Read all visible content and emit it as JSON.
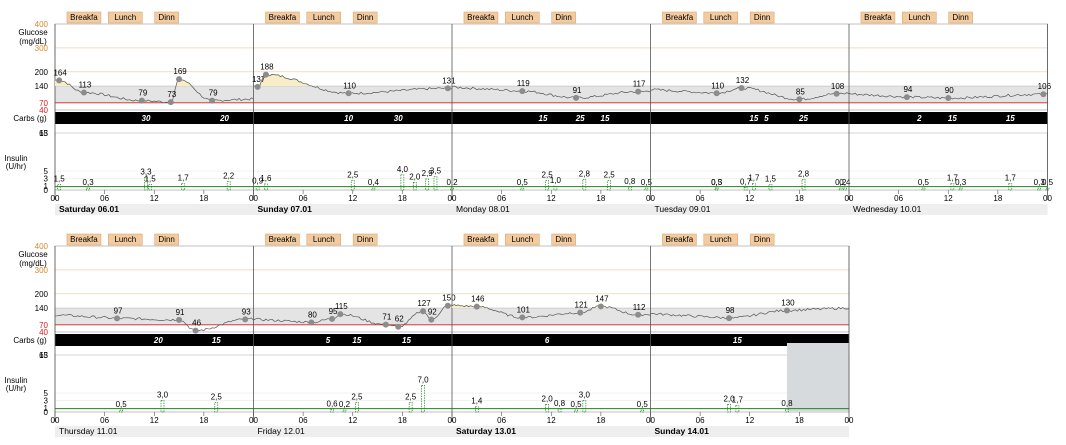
{
  "chart_data": {
    "type": "line",
    "axis_labels": {
      "glucose": "Glucose (mg/dL)",
      "carbs": "Carbs (g)",
      "insulin": "Insulin (U/hr)"
    },
    "glucose_ticks": [
      400,
      300,
      200,
      140,
      70,
      40
    ],
    "glucose_ticks_colored": [
      400,
      300
    ],
    "glucose_target_range": [
      70,
      140
    ],
    "carbs_max": 63,
    "insulin_ticks": [
      15,
      5,
      3,
      1,
      0
    ],
    "meal_labels": [
      "Breakfa",
      "Lunch",
      "Dinn"
    ],
    "x_hours": [
      "00",
      "06",
      "12",
      "18"
    ],
    "colors": {
      "glucose_line": "#555555",
      "target_band": "#e4e4e4",
      "high_fill": "#f7edc8",
      "low_line": "#d81e1e",
      "meal_box": "#f2cba0",
      "insulin_line": "#1a8a1a",
      "carb_bar": "#000000",
      "high_ticks": "#d98a2b"
    },
    "rows": [
      {
        "days": [
          {
            "label": "Saturday 06.01",
            "bold": true,
            "glucose_readings": [
              {
                "h": 0.5,
                "v": 164
              },
              {
                "h": 3.5,
                "v": 113
              },
              {
                "h": 10.5,
                "v": 79
              },
              {
                "h": 14.0,
                "v": 73
              },
              {
                "h": 15.0,
                "v": 169
              },
              {
                "h": 19.0,
                "v": 79
              }
            ],
            "carbs": [
              {
                "h": 11.0,
                "v": 30
              },
              {
                "h": 20.5,
                "v": 20
              }
            ],
            "boluses": [
              {
                "h": 0.5,
                "v": "1,5"
              },
              {
                "h": 4.0,
                "v": "0,3"
              },
              {
                "h": 11.0,
                "v": "3,3"
              },
              {
                "h": 11.5,
                "v": "1,5"
              },
              {
                "h": 15.5,
                "v": "1,7"
              },
              {
                "h": 21.0,
                "v": "2,2"
              }
            ]
          },
          {
            "label": "Sunday 07.01",
            "bold": true,
            "glucose_readings": [
              {
                "h": 0.5,
                "v": 137
              },
              {
                "h": 1.5,
                "v": 188
              },
              {
                "h": 11.5,
                "v": 110
              },
              {
                "h": 23.5,
                "v": 131
              }
            ],
            "carbs": [
              {
                "h": 11.5,
                "v": 10
              },
              {
                "h": 17.5,
                "v": 30
              }
            ],
            "boluses": [
              {
                "h": 0.5,
                "v": "0,9"
              },
              {
                "h": 1.5,
                "v": "1,6"
              },
              {
                "h": 12.0,
                "v": "2,5"
              },
              {
                "h": 14.5,
                "v": "0,4"
              },
              {
                "h": 18.0,
                "v": "4,0"
              },
              {
                "h": 19.5,
                "v": "2,0"
              },
              {
                "h": 21.0,
                "v": "2,9"
              },
              {
                "h": 22.0,
                "v": "3,5"
              },
              {
                "h": 24.0,
                "v": "0,2"
              }
            ]
          },
          {
            "label": "Monday 08.01",
            "bold": false,
            "glucose_readings": [
              {
                "h": 8.5,
                "v": 119
              },
              {
                "h": 15.0,
                "v": 91
              },
              {
                "h": 22.5,
                "v": 117
              }
            ],
            "carbs": [
              {
                "h": 11.0,
                "v": 15
              },
              {
                "h": 15.5,
                "v": 25
              },
              {
                "h": 18.5,
                "v": 15
              }
            ],
            "boluses": [
              {
                "h": 8.5,
                "v": "0,5"
              },
              {
                "h": 11.5,
                "v": "2,5"
              },
              {
                "h": 12.5,
                "v": "1,0"
              },
              {
                "h": 16.0,
                "v": "2,8"
              },
              {
                "h": 19.0,
                "v": "2,5"
              },
              {
                "h": 21.5,
                "v": "0,8"
              },
              {
                "h": 23.5,
                "v": "0,5"
              }
            ]
          },
          {
            "label": "Tuesday 09.01",
            "bold": false,
            "glucose_readings": [
              {
                "h": 8.0,
                "v": 110
              },
              {
                "h": 11.0,
                "v": 132
              },
              {
                "h": 18.0,
                "v": 85
              },
              {
                "h": 22.5,
                "v": 108
              }
            ],
            "carbs": [
              {
                "h": 12.5,
                "v": 15
              },
              {
                "h": 14.0,
                "v": 5
              },
              {
                "h": 18.5,
                "v": 25
              }
            ],
            "boluses": [
              {
                "h": 8.0,
                "v": "0,5"
              },
              {
                "h": 8.0,
                "v": "0,3"
              },
              {
                "h": 11.5,
                "v": "0,7"
              },
              {
                "h": 12.5,
                "v": "1,7"
              },
              {
                "h": 14.5,
                "v": "1,5"
              },
              {
                "h": 18.5,
                "v": "2,8"
              },
              {
                "h": 23.0,
                "v": "0,2"
              },
              {
                "h": 23.5,
                "v": "0,4"
              }
            ]
          },
          {
            "label": "Wednesday 10.01",
            "bold": false,
            "glucose_readings": [
              {
                "h": 7.0,
                "v": 94
              },
              {
                "h": 12.0,
                "v": 90
              },
              {
                "h": 23.5,
                "v": 106
              }
            ],
            "carbs": [
              {
                "h": 8.5,
                "v": 2
              },
              {
                "h": 12.5,
                "v": 15
              },
              {
                "h": 19.5,
                "v": 15
              }
            ],
            "boluses": [
              {
                "h": 9.0,
                "v": "0,5"
              },
              {
                "h": 12.5,
                "v": "1,7"
              },
              {
                "h": 13.5,
                "v": "0,3"
              },
              {
                "h": 19.5,
                "v": "1,7"
              },
              {
                "h": 23.0,
                "v": "0,3"
              },
              {
                "h": 24.0,
                "v": "0,5"
              }
            ]
          }
        ]
      },
      {
        "days": [
          {
            "label": "Thursday 11.01",
            "bold": false,
            "glucose_readings": [
              {
                "h": 7.5,
                "v": 97
              },
              {
                "h": 15.0,
                "v": 91
              },
              {
                "h": 17.0,
                "v": 46
              },
              {
                "h": 23.0,
                "v": 93
              }
            ],
            "carbs": [
              {
                "h": 12.5,
                "v": 20
              },
              {
                "h": 19.5,
                "v": 15
              }
            ],
            "boluses": [
              {
                "h": 8.0,
                "v": "0,5"
              },
              {
                "h": 13.0,
                "v": "3,0"
              },
              {
                "h": 19.5,
                "v": "2,5"
              }
            ]
          },
          {
            "label": "Friday 12.01",
            "bold": false,
            "glucose_readings": [
              {
                "h": 7.0,
                "v": 80
              },
              {
                "h": 9.5,
                "v": 95
              },
              {
                "h": 10.5,
                "v": 115
              },
              {
                "h": 16.0,
                "v": 71
              },
              {
                "h": 17.5,
                "v": 62
              },
              {
                "h": 20.5,
                "v": 127
              },
              {
                "h": 21.5,
                "v": 92
              },
              {
                "h": 23.5,
                "v": 150
              }
            ],
            "carbs": [
              {
                "h": 9.0,
                "v": 5
              },
              {
                "h": 12.5,
                "v": 15
              },
              {
                "h": 18.5,
                "v": 15
              }
            ],
            "boluses": [
              {
                "h": 9.5,
                "v": "0,6"
              },
              {
                "h": 11.0,
                "v": "0,2"
              },
              {
                "h": 12.5,
                "v": "2,5"
              },
              {
                "h": 19.0,
                "v": "2,5"
              },
              {
                "h": 20.5,
                "v": "7,0"
              }
            ]
          },
          {
            "label": "Saturday 13.01",
            "bold": true,
            "glucose_readings": [
              {
                "h": 3.0,
                "v": 146
              },
              {
                "h": 8.5,
                "v": 101
              },
              {
                "h": 15.5,
                "v": 121
              },
              {
                "h": 18.0,
                "v": 147
              },
              {
                "h": 22.5,
                "v": 112
              }
            ],
            "carbs": [
              {
                "h": 11.5,
                "v": 6
              }
            ],
            "boluses": [
              {
                "h": 3.0,
                "v": "1,4"
              },
              {
                "h": 11.5,
                "v": "2,0"
              },
              {
                "h": 13.0,
                "v": "0,8"
              },
              {
                "h": 15.0,
                "v": "0,5"
              },
              {
                "h": 16.0,
                "v": "3,0"
              },
              {
                "h": 23.0,
                "v": "0,5"
              }
            ]
          },
          {
            "label": "Sunday 14.01",
            "bold": true,
            "glucose_readings": [
              {
                "h": 9.5,
                "v": 98
              },
              {
                "h": 16.5,
                "v": 130
              }
            ],
            "carbs": [
              {
                "h": 10.5,
                "v": 15
              }
            ],
            "boluses": [
              {
                "h": 9.5,
                "v": "2,0"
              },
              {
                "h": 10.5,
                "v": "1,7"
              },
              {
                "h": 16.5,
                "v": "0,8"
              }
            ]
          }
        ]
      }
    ]
  }
}
